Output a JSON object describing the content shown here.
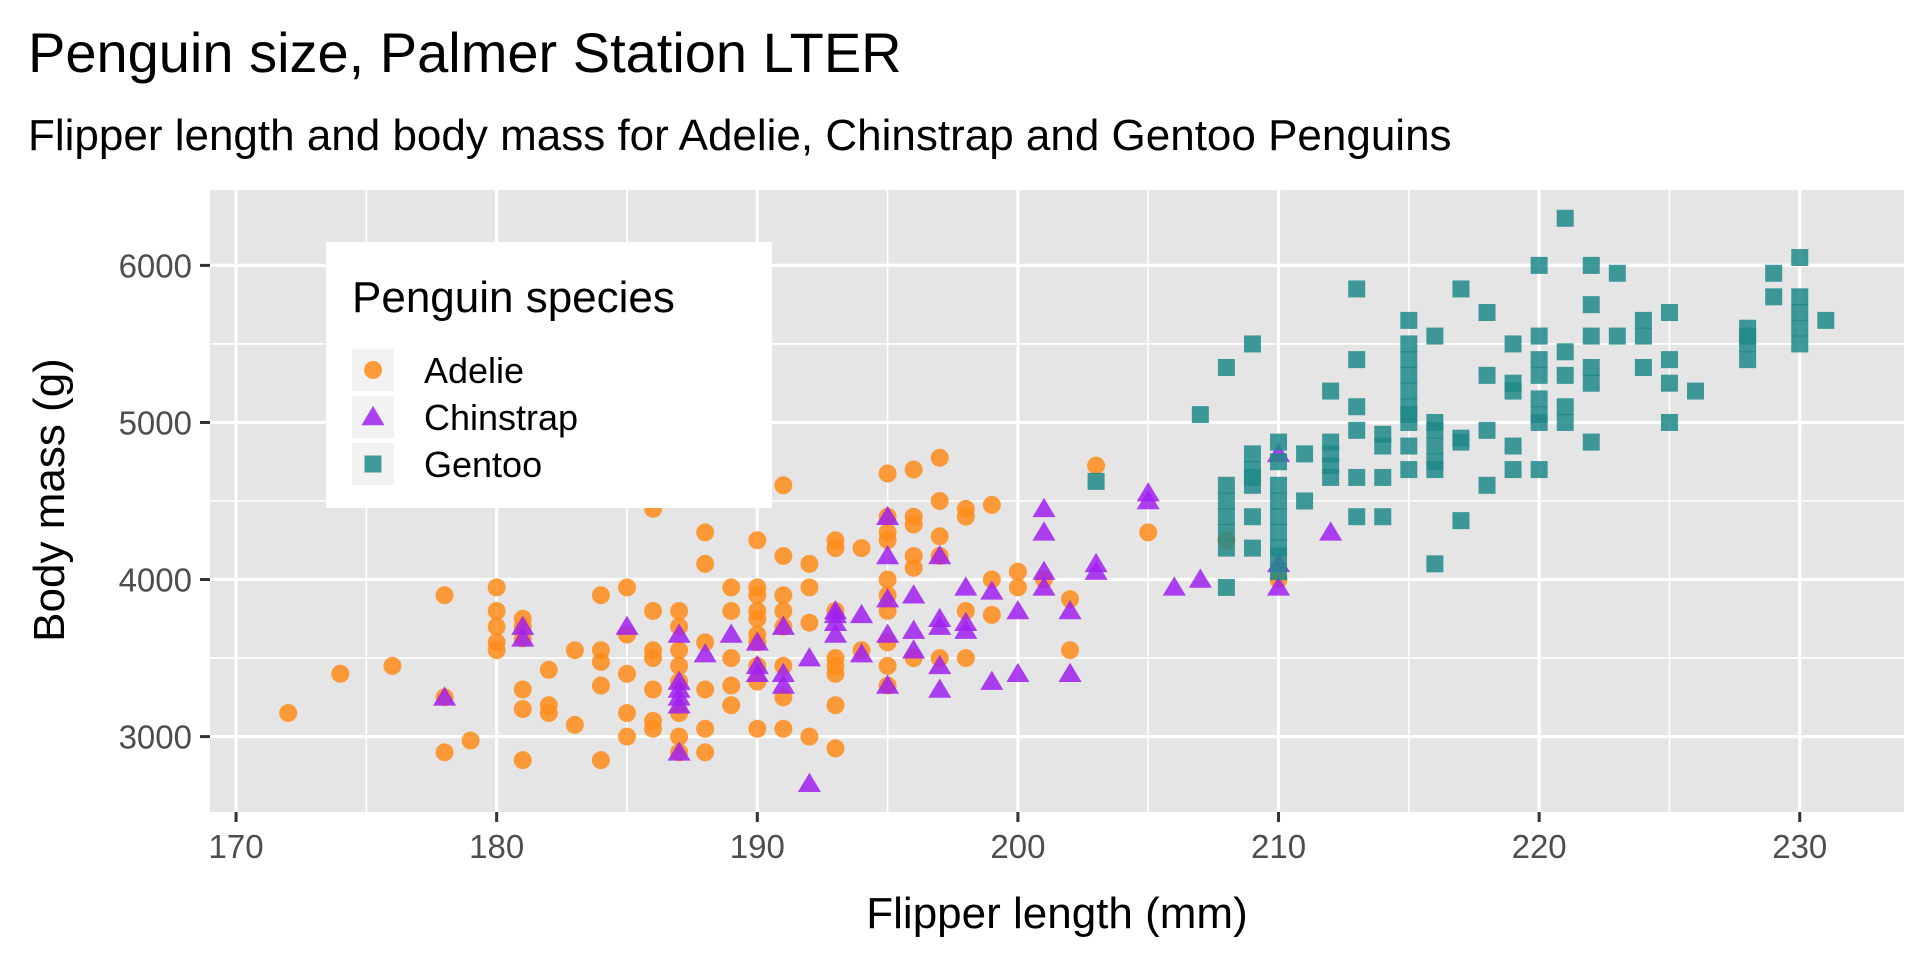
{
  "chart_data": {
    "type": "scatter",
    "title": "Penguin size, Palmer Station LTER",
    "subtitle": "Flipper length and body mass for Adelie, Chinstrap and Gentoo Penguins",
    "xlabel": "Flipper length (mm)",
    "ylabel": "Body mass (g)",
    "xlim": [
      169,
      234
    ],
    "ylim": [
      2520,
      6480
    ],
    "x_ticks": [
      170,
      180,
      190,
      200,
      210,
      220,
      230
    ],
    "y_ticks": [
      3000,
      4000,
      5000,
      6000
    ],
    "x_tick_labels": [
      "170",
      "180",
      "190",
      "200",
      "210",
      "220",
      "230"
    ],
    "y_tick_labels": [
      "3000",
      "4000",
      "5000",
      "6000"
    ],
    "grid": true,
    "panel_background": "#e5e5e5",
    "grid_color": "#ffffff",
    "legend": {
      "title": "Penguin species",
      "position": "top-left-inside",
      "entries": [
        "Adelie",
        "Chinstrap",
        "Gentoo"
      ]
    },
    "series": [
      {
        "name": "Adelie",
        "color": "#ff8c1a",
        "shape": "circle",
        "points": [
          [
            172,
            3150
          ],
          [
            174,
            3400
          ],
          [
            176,
            3450
          ],
          [
            178,
            3900
          ],
          [
            178,
            2900
          ],
          [
            178,
            3250
          ],
          [
            179,
            2975
          ],
          [
            180,
            3950
          ],
          [
            180,
            3800
          ],
          [
            180,
            3700
          ],
          [
            180,
            3600
          ],
          [
            180,
            3550
          ],
          [
            181,
            3750
          ],
          [
            181,
            3700
          ],
          [
            181,
            3625
          ],
          [
            181,
            3300
          ],
          [
            181,
            3175
          ],
          [
            181,
            2850
          ],
          [
            182,
            3425
          ],
          [
            182,
            3200
          ],
          [
            182,
            3150
          ],
          [
            183,
            3550
          ],
          [
            183,
            3075
          ],
          [
            184,
            3900
          ],
          [
            184,
            3550
          ],
          [
            184,
            3475
          ],
          [
            184,
            3325
          ],
          [
            184,
            2850
          ],
          [
            185,
            3950
          ],
          [
            185,
            3650
          ],
          [
            185,
            3400
          ],
          [
            185,
            3150
          ],
          [
            185,
            3000
          ],
          [
            186,
            4450
          ],
          [
            186,
            3800
          ],
          [
            186,
            3550
          ],
          [
            186,
            3500
          ],
          [
            186,
            3300
          ],
          [
            186,
            3100
          ],
          [
            186,
            3050
          ],
          [
            187,
            3800
          ],
          [
            187,
            3700
          ],
          [
            187,
            3550
          ],
          [
            187,
            3450
          ],
          [
            187,
            3350
          ],
          [
            187,
            3150
          ],
          [
            187,
            3000
          ],
          [
            187,
            2900
          ],
          [
            188,
            4300
          ],
          [
            188,
            4100
          ],
          [
            188,
            3600
          ],
          [
            188,
            3300
          ],
          [
            188,
            3050
          ],
          [
            188,
            2900
          ],
          [
            189,
            3950
          ],
          [
            189,
            3800
          ],
          [
            189,
            3500
          ],
          [
            189,
            3325
          ],
          [
            189,
            3200
          ],
          [
            190,
            4250
          ],
          [
            190,
            3950
          ],
          [
            190,
            3900
          ],
          [
            190,
            3800
          ],
          [
            190,
            3750
          ],
          [
            190,
            3650
          ],
          [
            190,
            3600
          ],
          [
            190,
            3450
          ],
          [
            190,
            3350
          ],
          [
            190,
            3050
          ],
          [
            191,
            4600
          ],
          [
            191,
            4150
          ],
          [
            191,
            3900
          ],
          [
            191,
            3800
          ],
          [
            191,
            3700
          ],
          [
            191,
            3450
          ],
          [
            191,
            3250
          ],
          [
            191,
            3050
          ],
          [
            192,
            4100
          ],
          [
            192,
            3950
          ],
          [
            192,
            3725
          ],
          [
            192,
            3000
          ],
          [
            193,
            4250
          ],
          [
            193,
            4200
          ],
          [
            193,
            3800
          ],
          [
            193,
            3500
          ],
          [
            193,
            3450
          ],
          [
            193,
            3400
          ],
          [
            193,
            3200
          ],
          [
            193,
            2925
          ],
          [
            194,
            4200
          ],
          [
            194,
            3550
          ],
          [
            195,
            4675
          ],
          [
            195,
            4400
          ],
          [
            195,
            4300
          ],
          [
            195,
            4250
          ],
          [
            195,
            4000
          ],
          [
            195,
            3900
          ],
          [
            195,
            3800
          ],
          [
            195,
            3600
          ],
          [
            195,
            3450
          ],
          [
            195,
            3325
          ],
          [
            196,
            4700
          ],
          [
            196,
            4400
          ],
          [
            196,
            4350
          ],
          [
            196,
            4150
          ],
          [
            196,
            4075
          ],
          [
            196,
            3500
          ],
          [
            197,
            4775
          ],
          [
            197,
            4500
          ],
          [
            197,
            4275
          ],
          [
            197,
            4150
          ],
          [
            197,
            3500
          ],
          [
            198,
            4450
          ],
          [
            198,
            4400
          ],
          [
            198,
            3800
          ],
          [
            198,
            3500
          ],
          [
            199,
            4475
          ],
          [
            199,
            4000
          ],
          [
            199,
            3775
          ],
          [
            200,
            4050
          ],
          [
            200,
            3950
          ],
          [
            201,
            4000
          ],
          [
            202,
            3875
          ],
          [
            202,
            3550
          ],
          [
            203,
            4725
          ],
          [
            205,
            4300
          ],
          [
            208,
            4250
          ],
          [
            210,
            4000
          ]
        ]
      },
      {
        "name": "Chinstrap",
        "color": "#a020f0",
        "shape": "triangle",
        "points": [
          [
            178,
            3250
          ],
          [
            181,
            3700
          ],
          [
            181,
            3625
          ],
          [
            185,
            3700
          ],
          [
            187,
            3650
          ],
          [
            187,
            3350
          ],
          [
            187,
            3300
          ],
          [
            187,
            3250
          ],
          [
            187,
            3200
          ],
          [
            187,
            2900
          ],
          [
            188,
            3525
          ],
          [
            189,
            3650
          ],
          [
            190,
            3600
          ],
          [
            190,
            3450
          ],
          [
            190,
            3400
          ],
          [
            191,
            3700
          ],
          [
            191,
            3400
          ],
          [
            191,
            3325
          ],
          [
            192,
            3500
          ],
          [
            192,
            2700
          ],
          [
            193,
            3800
          ],
          [
            193,
            3775
          ],
          [
            193,
            3725
          ],
          [
            193,
            3650
          ],
          [
            194,
            3775
          ],
          [
            194,
            3525
          ],
          [
            195,
            4400
          ],
          [
            195,
            4150
          ],
          [
            195,
            3875
          ],
          [
            195,
            3650
          ],
          [
            195,
            3325
          ],
          [
            196,
            3900
          ],
          [
            196,
            3675
          ],
          [
            196,
            3550
          ],
          [
            197,
            4150
          ],
          [
            197,
            3750
          ],
          [
            197,
            3700
          ],
          [
            197,
            3450
          ],
          [
            197,
            3300
          ],
          [
            198,
            3950
          ],
          [
            198,
            3725
          ],
          [
            198,
            3675
          ],
          [
            199,
            3925
          ],
          [
            199,
            3350
          ],
          [
            200,
            3800
          ],
          [
            200,
            3400
          ],
          [
            201,
            4450
          ],
          [
            201,
            4300
          ],
          [
            201,
            4050
          ],
          [
            201,
            3950
          ],
          [
            202,
            3800
          ],
          [
            202,
            3400
          ],
          [
            203,
            4100
          ],
          [
            203,
            4050
          ],
          [
            205,
            4550
          ],
          [
            205,
            4500
          ],
          [
            206,
            3950
          ],
          [
            207,
            4000
          ],
          [
            210,
            4800
          ],
          [
            210,
            4100
          ],
          [
            210,
            3950
          ],
          [
            212,
            4300
          ]
        ]
      },
      {
        "name": "Gentoo",
        "color": "#1f8a88",
        "shape": "square",
        "points": [
          [
            203,
            4625
          ],
          [
            207,
            5050
          ],
          [
            208,
            5350
          ],
          [
            208,
            4600
          ],
          [
            208,
            4500
          ],
          [
            208,
            4400
          ],
          [
            208,
            4300
          ],
          [
            208,
            4200
          ],
          [
            208,
            3950
          ],
          [
            209,
            5500
          ],
          [
            209,
            4800
          ],
          [
            209,
            4700
          ],
          [
            209,
            4650
          ],
          [
            209,
            4600
          ],
          [
            209,
            4400
          ],
          [
            209,
            4200
          ],
          [
            210,
            4875
          ],
          [
            210,
            4750
          ],
          [
            210,
            4600
          ],
          [
            210,
            4500
          ],
          [
            210,
            4400
          ],
          [
            210,
            4300
          ],
          [
            210,
            4200
          ],
          [
            210,
            4150
          ],
          [
            210,
            4050
          ],
          [
            211,
            4800
          ],
          [
            211,
            4500
          ],
          [
            212,
            5200
          ],
          [
            212,
            4875
          ],
          [
            212,
            4800
          ],
          [
            212,
            4725
          ],
          [
            212,
            4650
          ],
          [
            213,
            5850
          ],
          [
            213,
            5400
          ],
          [
            213,
            5100
          ],
          [
            213,
            4950
          ],
          [
            213,
            4650
          ],
          [
            213,
            4400
          ],
          [
            214,
            4925
          ],
          [
            214,
            4850
          ],
          [
            214,
            4650
          ],
          [
            214,
            4400
          ],
          [
            215,
            5650
          ],
          [
            215,
            5500
          ],
          [
            215,
            5400
          ],
          [
            215,
            5300
          ],
          [
            215,
            5200
          ],
          [
            215,
            5100
          ],
          [
            215,
            5050
          ],
          [
            215,
            5000
          ],
          [
            215,
            4850
          ],
          [
            215,
            4700
          ],
          [
            216,
            5550
          ],
          [
            216,
            5000
          ],
          [
            216,
            4950
          ],
          [
            216,
            4850
          ],
          [
            216,
            4750
          ],
          [
            216,
            4700
          ],
          [
            216,
            4100
          ],
          [
            217,
            5850
          ],
          [
            217,
            4900
          ],
          [
            217,
            4875
          ],
          [
            217,
            4375
          ],
          [
            218,
            5700
          ],
          [
            218,
            5300
          ],
          [
            218,
            4950
          ],
          [
            218,
            4600
          ],
          [
            219,
            5500
          ],
          [
            219,
            5250
          ],
          [
            219,
            5200
          ],
          [
            219,
            4850
          ],
          [
            219,
            4700
          ],
          [
            220,
            6000
          ],
          [
            220,
            5550
          ],
          [
            220,
            5400
          ],
          [
            220,
            5300
          ],
          [
            220,
            5150
          ],
          [
            220,
            5050
          ],
          [
            220,
            5000
          ],
          [
            220,
            4700
          ],
          [
            221,
            6300
          ],
          [
            221,
            5450
          ],
          [
            221,
            5300
          ],
          [
            221,
            5100
          ],
          [
            221,
            5000
          ],
          [
            222,
            6000
          ],
          [
            222,
            5750
          ],
          [
            222,
            5550
          ],
          [
            222,
            5350
          ],
          [
            222,
            5250
          ],
          [
            222,
            4875
          ],
          [
            223,
            5950
          ],
          [
            223,
            5550
          ],
          [
            224,
            5650
          ],
          [
            224,
            5550
          ],
          [
            224,
            5350
          ],
          [
            225,
            5700
          ],
          [
            225,
            5400
          ],
          [
            225,
            5250
          ],
          [
            225,
            5000
          ],
          [
            226,
            5200
          ],
          [
            228,
            5600
          ],
          [
            228,
            5550
          ],
          [
            228,
            5500
          ],
          [
            228,
            5400
          ],
          [
            229,
            5950
          ],
          [
            229,
            5800
          ],
          [
            230,
            6050
          ],
          [
            230,
            5800
          ],
          [
            230,
            5700
          ],
          [
            230,
            5600
          ],
          [
            230,
            5500
          ],
          [
            231,
            5650
          ]
        ]
      }
    ]
  }
}
